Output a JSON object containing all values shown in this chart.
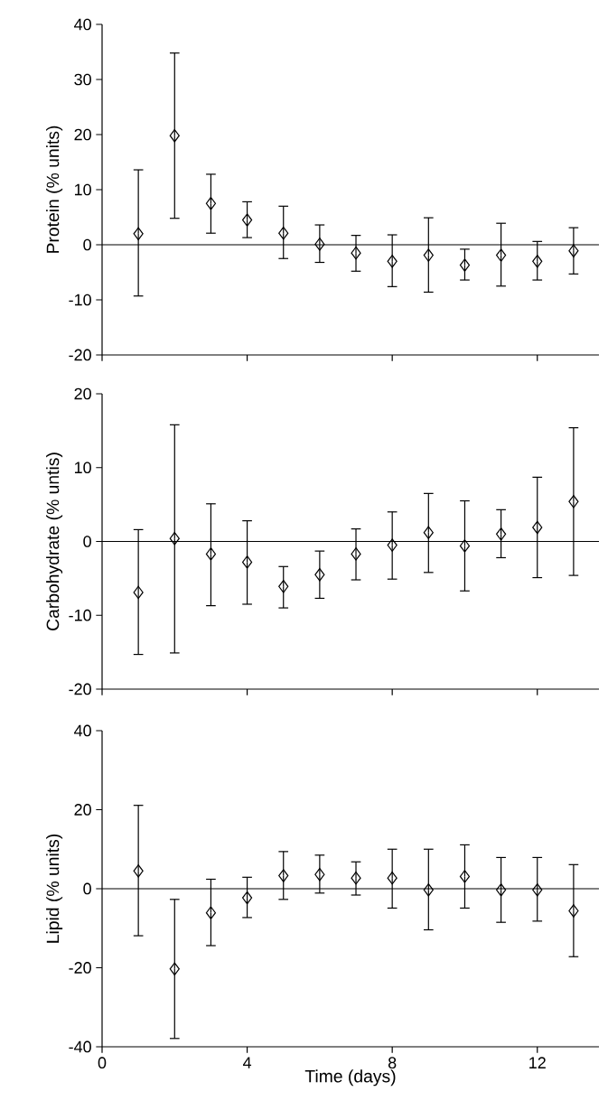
{
  "chart_data": [
    {
      "type": "scatter",
      "ylabel": "Protein (% units)",
      "x": [
        1,
        2,
        3,
        4,
        5,
        6,
        7,
        8,
        9,
        10,
        11,
        12,
        13
      ],
      "xlim": [
        0,
        13.7
      ],
      "xticks": [
        0,
        4,
        8,
        12
      ],
      "ylim": [
        -20,
        40
      ],
      "yticks": [
        -20,
        -10,
        0,
        10,
        20,
        30,
        40
      ],
      "tick_labels": "y",
      "marker": "diamond",
      "ref_lines": [
        {
          "axis": "y",
          "value": 0
        }
      ],
      "series": [
        {
          "color": "#000000",
          "values": [
            2.0,
            19.8,
            7.5,
            4.5,
            2.1,
            0.1,
            -1.5,
            -3.0,
            -1.9,
            -3.7,
            -1.9,
            -3.0,
            -1.1
          ],
          "errors": [
            [
              -9.3,
              13.6
            ],
            [
              4.8,
              34.8
            ],
            [
              2.1,
              12.8
            ],
            [
              1.3,
              7.8
            ],
            [
              -2.5,
              7.0
            ],
            [
              -3.2,
              3.6
            ],
            [
              -4.8,
              1.7
            ],
            [
              -7.6,
              1.8
            ],
            [
              -8.6,
              4.9
            ],
            [
              -6.4,
              -0.8
            ],
            [
              -7.5,
              3.9
            ],
            [
              -6.4,
              0.6
            ],
            [
              -5.3,
              3.1
            ]
          ]
        }
      ]
    },
    {
      "type": "scatter",
      "ylabel": "Carbohydrate (% untis)",
      "x": [
        1,
        2,
        3,
        4,
        5,
        6,
        7,
        8,
        9,
        10,
        11,
        12,
        13
      ],
      "xlim": [
        0,
        13.7
      ],
      "xticks": [
        0,
        4,
        8,
        12
      ],
      "ylim": [
        -20,
        20
      ],
      "yticks": [
        -20,
        -10,
        0,
        10,
        20
      ],
      "tick_labels": "y",
      "marker": "diamond",
      "ref_lines": [
        {
          "axis": "y",
          "value": 0
        }
      ],
      "series": [
        {
          "color": "#000000",
          "values": [
            -6.9,
            0.4,
            -1.7,
            -2.8,
            -6.1,
            -4.5,
            -1.7,
            -0.5,
            1.2,
            -0.6,
            1.0,
            1.9,
            5.4
          ],
          "errors": [
            [
              -15.3,
              1.6
            ],
            [
              -15.1,
              15.8
            ],
            [
              -8.7,
              5.1
            ],
            [
              -8.5,
              2.8
            ],
            [
              -9.0,
              -3.4
            ],
            [
              -7.7,
              -1.3
            ],
            [
              -5.2,
              1.7
            ],
            [
              -5.1,
              4.0
            ],
            [
              -4.2,
              6.5
            ],
            [
              -6.7,
              5.5
            ],
            [
              -2.2,
              4.3
            ],
            [
              -4.9,
              8.7
            ],
            [
              -4.6,
              15.4
            ]
          ]
        }
      ]
    },
    {
      "type": "scatter",
      "ylabel": "Lipid (% units)",
      "xlabel": "Time (days)",
      "x": [
        1,
        2,
        3,
        4,
        5,
        6,
        7,
        8,
        9,
        10,
        11,
        12,
        13
      ],
      "xlim": [
        0,
        13.7
      ],
      "xticks": [
        0,
        4,
        8,
        12
      ],
      "ylim": [
        -40,
        40
      ],
      "yticks": [
        -40,
        -20,
        0,
        20,
        40
      ],
      "marker": "diamond",
      "ref_lines": [
        {
          "axis": "y",
          "value": 0
        }
      ],
      "series": [
        {
          "color": "#000000",
          "values": [
            4.5,
            -20.3,
            -6.1,
            -2.3,
            3.3,
            3.6,
            2.7,
            2.7,
            -0.3,
            3.1,
            -0.3,
            -0.3,
            -5.6
          ],
          "errors": [
            [
              -11.9,
              21.1
            ],
            [
              -37.9,
              -2.7
            ],
            [
              -14.4,
              2.4
            ],
            [
              -7.3,
              2.9
            ],
            [
              -2.7,
              9.4
            ],
            [
              -1.1,
              8.5
            ],
            [
              -1.6,
              6.8
            ],
            [
              -4.9,
              10.0
            ],
            [
              -10.4,
              10.0
            ],
            [
              -4.9,
              11.1
            ],
            [
              -8.5,
              7.9
            ],
            [
              -8.2,
              7.9
            ],
            [
              -17.2,
              6.1
            ]
          ]
        }
      ]
    }
  ]
}
